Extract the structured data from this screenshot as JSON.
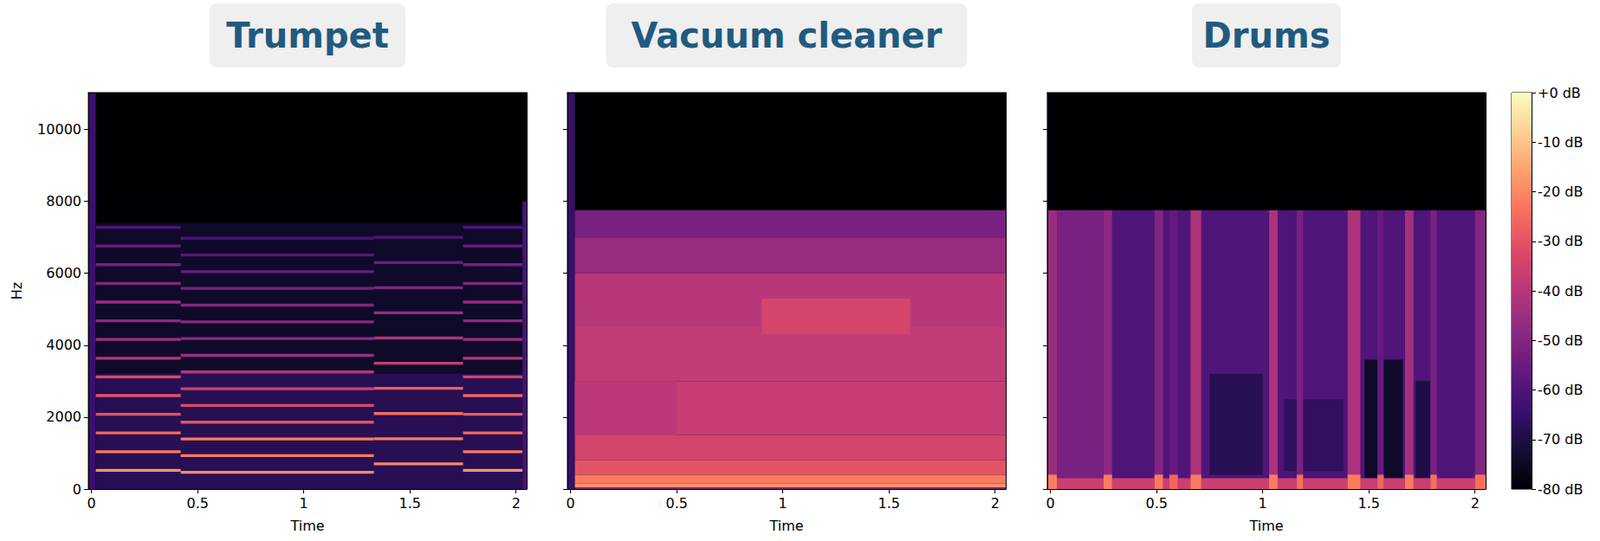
{
  "chart_data": [
    {
      "type": "heatmap",
      "title": "Trumpet",
      "xlabel": "Time",
      "ylabel": "Hz",
      "xlim": [
        -0.015,
        2.05
      ],
      "ylim": [
        0,
        11025
      ],
      "xticks": [
        0,
        0.5,
        1,
        1.5,
        2
      ],
      "yticks": [
        0,
        2000,
        4000,
        6000,
        8000,
        10000
      ],
      "grid": false,
      "cells": [
        [
          -0.015,
          2.05,
          0,
          11025,
          -80
        ],
        [
          -0.015,
          0.02,
          0,
          11025,
          -64
        ],
        [
          0.02,
          2.03,
          0,
          7400,
          -74
        ],
        [
          0.02,
          2.03,
          0,
          3200,
          -68
        ],
        [
          2.03,
          2.05,
          0,
          8000,
          -62
        ],
        [
          0.02,
          0.42,
          480,
          560,
          -18
        ],
        [
          0.02,
          0.42,
          1000,
          1080,
          -22
        ],
        [
          0.02,
          0.42,
          1520,
          1600,
          -25
        ],
        [
          0.02,
          0.42,
          2040,
          2120,
          -30
        ],
        [
          0.02,
          0.42,
          2560,
          2640,
          -30
        ],
        [
          0.02,
          0.42,
          3080,
          3160,
          -32
        ],
        [
          0.02,
          0.42,
          3600,
          3680,
          -40
        ],
        [
          0.02,
          0.42,
          4120,
          4200,
          -45
        ],
        [
          0.02,
          0.42,
          4640,
          4720,
          -48
        ],
        [
          0.02,
          0.42,
          5160,
          5240,
          -45
        ],
        [
          0.02,
          0.42,
          5680,
          5760,
          -50
        ],
        [
          0.02,
          0.42,
          6200,
          6280,
          -52
        ],
        [
          0.02,
          0.42,
          6720,
          6800,
          -55
        ],
        [
          0.02,
          0.42,
          7240,
          7320,
          -60
        ],
        [
          0.42,
          1.33,
          425,
          505,
          -20
        ],
        [
          0.42,
          1.33,
          890,
          970,
          -22
        ],
        [
          0.42,
          1.33,
          1355,
          1435,
          -22
        ],
        [
          0.42,
          1.33,
          1820,
          1900,
          -30
        ],
        [
          0.42,
          1.33,
          2285,
          2365,
          -32
        ],
        [
          0.42,
          1.33,
          2750,
          2830,
          -35
        ],
        [
          0.42,
          1.33,
          3215,
          3295,
          -40
        ],
        [
          0.42,
          1.33,
          3680,
          3760,
          -45
        ],
        [
          0.42,
          1.33,
          4145,
          4225,
          -48
        ],
        [
          0.42,
          1.33,
          4610,
          4690,
          -48
        ],
        [
          0.42,
          1.33,
          5075,
          5155,
          -50
        ],
        [
          0.42,
          1.33,
          5540,
          5620,
          -52
        ],
        [
          0.42,
          1.33,
          6005,
          6085,
          -55
        ],
        [
          0.42,
          1.33,
          6470,
          6550,
          -58
        ],
        [
          0.42,
          1.33,
          6935,
          7015,
          -62
        ],
        [
          1.33,
          1.75,
          660,
          740,
          -20
        ],
        [
          1.33,
          1.75,
          1360,
          1440,
          -22
        ],
        [
          1.33,
          1.75,
          2060,
          2140,
          -25
        ],
        [
          1.33,
          1.75,
          2760,
          2840,
          -28
        ],
        [
          1.33,
          1.75,
          3460,
          3540,
          -38
        ],
        [
          1.33,
          1.75,
          4160,
          4240,
          -42
        ],
        [
          1.33,
          1.75,
          4860,
          4940,
          -46
        ],
        [
          1.33,
          1.75,
          5560,
          5640,
          -50
        ],
        [
          1.33,
          1.75,
          6260,
          6340,
          -55
        ],
        [
          1.33,
          1.75,
          6960,
          7040,
          -60
        ],
        [
          1.75,
          2.03,
          480,
          560,
          -18
        ],
        [
          1.75,
          2.03,
          1000,
          1080,
          -22
        ],
        [
          1.75,
          2.03,
          1520,
          1600,
          -25
        ],
        [
          1.75,
          2.03,
          2040,
          2120,
          -28
        ],
        [
          1.75,
          2.03,
          2560,
          2640,
          -26
        ],
        [
          1.75,
          2.03,
          3080,
          3160,
          -34
        ],
        [
          1.75,
          2.03,
          3600,
          3680,
          -40
        ],
        [
          1.75,
          2.03,
          4120,
          4200,
          -45
        ],
        [
          1.75,
          2.03,
          4640,
          4720,
          -48
        ],
        [
          1.75,
          2.03,
          5160,
          5240,
          -46
        ],
        [
          1.75,
          2.03,
          5680,
          5760,
          -50
        ],
        [
          1.75,
          2.03,
          6200,
          6280,
          -52
        ],
        [
          1.75,
          2.03,
          6720,
          6800,
          -55
        ],
        [
          1.75,
          2.03,
          7240,
          7320,
          -60
        ]
      ]
    },
    {
      "type": "heatmap",
      "title": "Vacuum cleaner",
      "xlabel": "Time",
      "xlim": [
        -0.015,
        2.05
      ],
      "ylim": [
        0,
        11025
      ],
      "xticks": [
        0,
        0.5,
        1,
        1.5,
        2
      ],
      "yticks": [
        0,
        2000,
        4000,
        6000,
        8000,
        10000
      ],
      "grid": false,
      "tick_labels": "x",
      "cells": [
        [
          -0.015,
          2.05,
          0,
          11025,
          -80
        ],
        [
          -0.015,
          0.02,
          0,
          11025,
          -65
        ],
        [
          0.02,
          2.05,
          7000,
          7750,
          -52
        ],
        [
          0.02,
          2.05,
          6000,
          7000,
          -46
        ],
        [
          0.02,
          2.05,
          4500,
          6000,
          -40
        ],
        [
          0.02,
          2.05,
          3000,
          4500,
          -38
        ],
        [
          0.02,
          2.05,
          1500,
          3000,
          -37
        ],
        [
          0.02,
          0.5,
          1500,
          3000,
          -39
        ],
        [
          0.02,
          2.05,
          800,
          1500,
          -34
        ],
        [
          0.02,
          2.05,
          400,
          800,
          -30
        ],
        [
          0.02,
          2.05,
          150,
          400,
          -22
        ],
        [
          0.02,
          2.05,
          40,
          150,
          -18
        ],
        [
          0.02,
          2.05,
          0,
          40,
          -50
        ],
        [
          0.9,
          1.6,
          4300,
          5300,
          -34
        ]
      ]
    },
    {
      "type": "heatmap",
      "title": "Drums",
      "xlabel": "Time",
      "xlim": [
        -0.015,
        2.05
      ],
      "ylim": [
        0,
        11025
      ],
      "xticks": [
        0,
        0.5,
        1,
        1.5,
        2
      ],
      "yticks": [
        0,
        2000,
        4000,
        6000,
        8000,
        10000
      ],
      "grid": false,
      "tick_labels": "x",
      "cells": [
        [
          -0.015,
          2.05,
          0,
          11025,
          -80
        ],
        [
          -0.015,
          2.05,
          0,
          7750,
          -60
        ],
        [
          -0.015,
          0.25,
          0,
          7750,
          -52
        ],
        [
          0.75,
          1.0,
          400,
          3200,
          -68
        ],
        [
          1.1,
          1.38,
          500,
          2500,
          -66
        ],
        [
          1.48,
          1.66,
          300,
          3600,
          -74
        ],
        [
          1.72,
          1.79,
          300,
          3000,
          -70
        ],
        [
          -0.015,
          2.05,
          0,
          300,
          -36
        ],
        [
          -0.015,
          0.03,
          0,
          7750,
          -46
        ],
        [
          0.25,
          0.29,
          0,
          7750,
          -48
        ],
        [
          0.49,
          0.53,
          0,
          7750,
          -50
        ],
        [
          0.56,
          0.6,
          0,
          7750,
          -56
        ],
        [
          0.66,
          0.71,
          0,
          7750,
          -42
        ],
        [
          1.03,
          1.07,
          0,
          7750,
          -42
        ],
        [
          1.16,
          1.19,
          0,
          7750,
          -52
        ],
        [
          1.4,
          1.46,
          0,
          7750,
          -42
        ],
        [
          1.54,
          1.57,
          0,
          7750,
          -56
        ],
        [
          1.67,
          1.71,
          0,
          7750,
          -44
        ],
        [
          1.79,
          1.82,
          0,
          7750,
          -52
        ],
        [
          2.0,
          2.05,
          0,
          7750,
          -50
        ],
        [
          -0.015,
          0.03,
          0,
          400,
          -22
        ],
        [
          0.25,
          0.29,
          0,
          400,
          -22
        ],
        [
          0.49,
          0.53,
          0,
          400,
          -22
        ],
        [
          0.56,
          0.6,
          0,
          400,
          -26
        ],
        [
          0.66,
          0.71,
          0,
          400,
          -22
        ],
        [
          1.03,
          1.07,
          0,
          400,
          -22
        ],
        [
          1.16,
          1.19,
          0,
          400,
          -24
        ],
        [
          1.4,
          1.46,
          0,
          400,
          -22
        ],
        [
          1.54,
          1.57,
          0,
          400,
          -26
        ],
        [
          1.67,
          1.71,
          0,
          400,
          -22
        ],
        [
          1.79,
          1.82,
          0,
          400,
          -24
        ],
        [
          2.0,
          2.05,
          0,
          400,
          -24
        ]
      ],
      "colorbar": {
        "color": "magma",
        "range": [
          -80,
          0
        ],
        "ticks": [
          {
            "value": 0,
            "label": "+0 dB"
          },
          {
            "value": -10,
            "label": "-10 dB"
          },
          {
            "value": -20,
            "label": "-20 dB"
          },
          {
            "value": -30,
            "label": "-30 dB"
          },
          {
            "value": -40,
            "label": "-40 dB"
          },
          {
            "value": -50,
            "label": "-50 dB"
          },
          {
            "value": -60,
            "label": "-60 dB"
          },
          {
            "value": -70,
            "label": "-70 dB"
          },
          {
            "value": -80,
            "label": "-80 dB"
          }
        ]
      }
    }
  ]
}
